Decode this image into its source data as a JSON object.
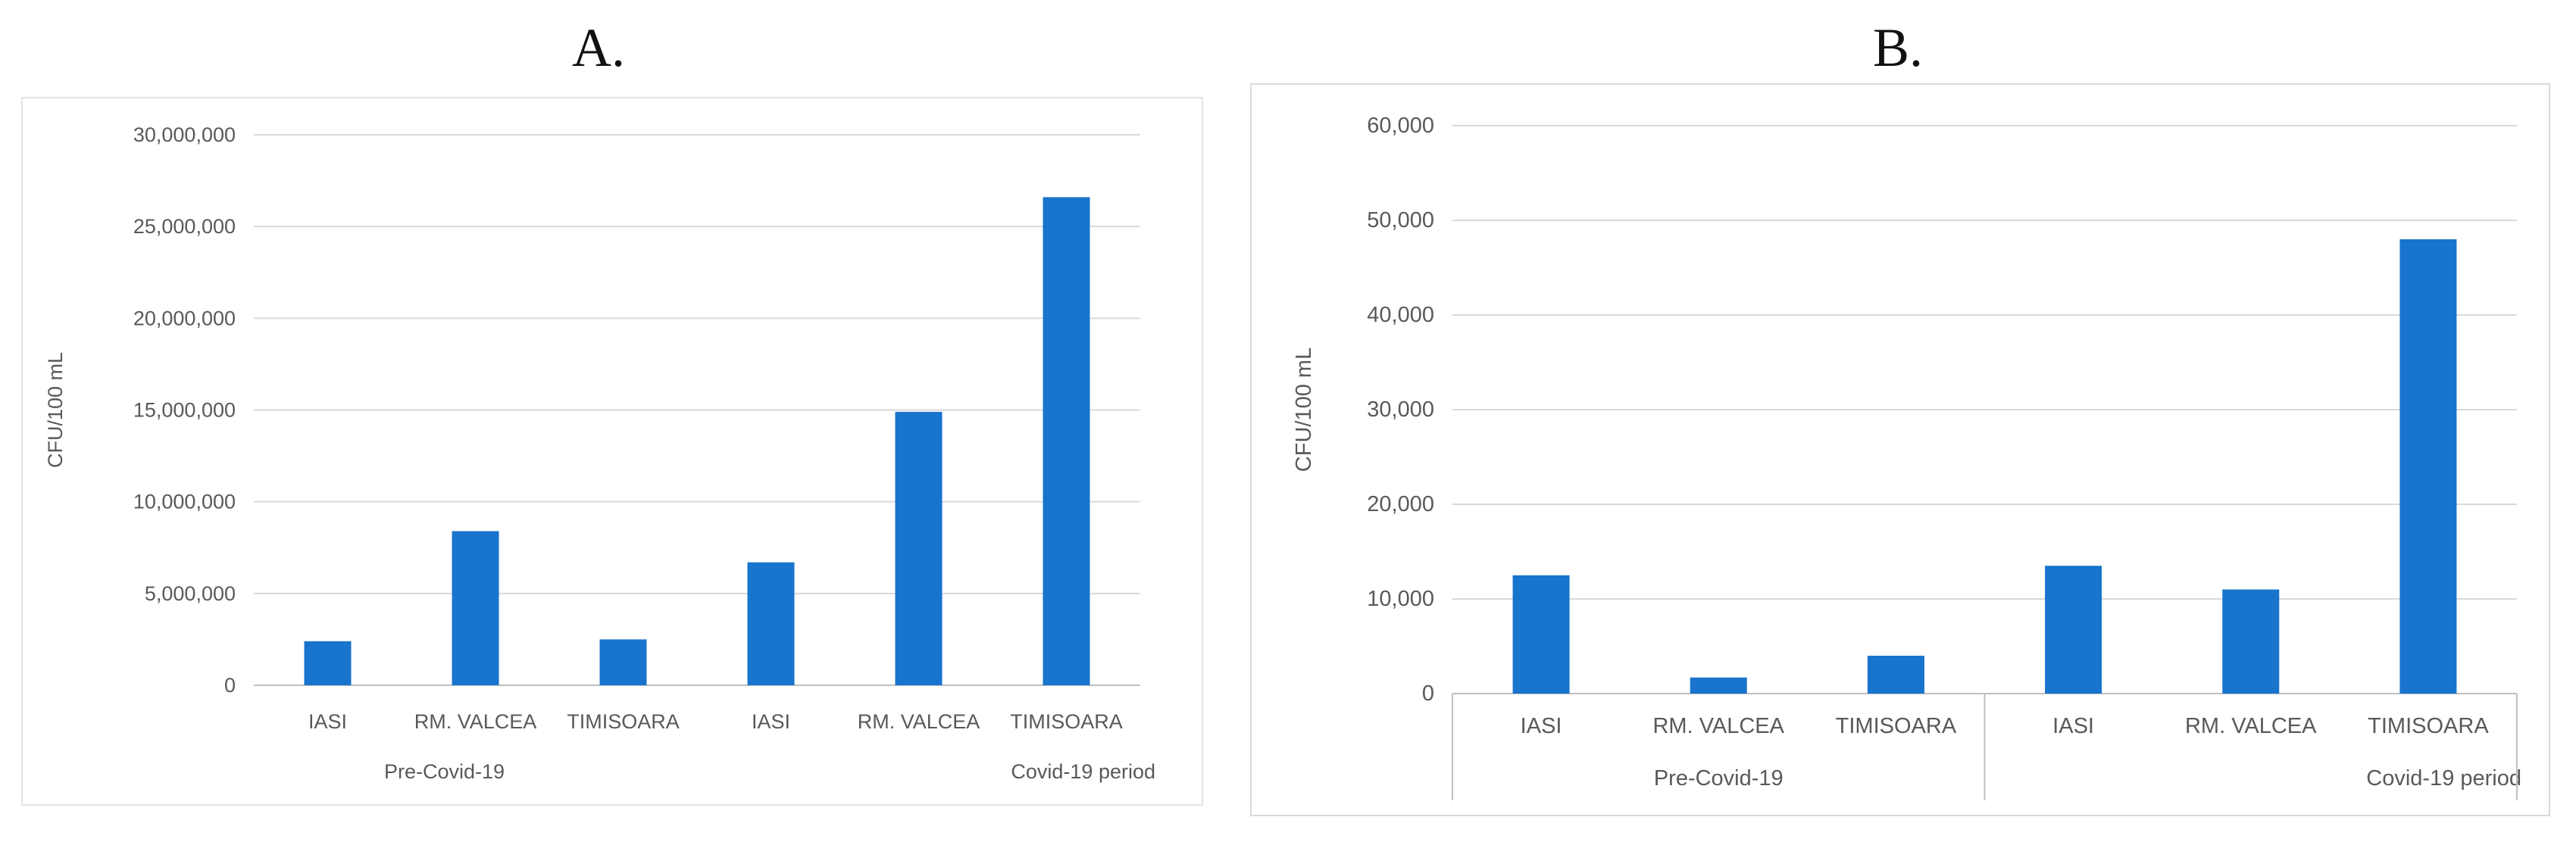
{
  "panels": {
    "a": {
      "label": "A."
    },
    "b": {
      "label": "B."
    }
  },
  "chart_data": [
    {
      "type": "bar",
      "ylabel": "CFU/100 mL",
      "xlabel": "",
      "ylim": [
        0,
        30000000
      ],
      "yticks": [
        0,
        5000000,
        10000000,
        15000000,
        20000000,
        25000000,
        30000000
      ],
      "ytick_labels": [
        "0",
        "5,000,000",
        "10,000,000",
        "15,000,000",
        "20,000,000",
        "25,000,000",
        "30,000,000"
      ],
      "categories": [
        "IASI",
        "RM. VALCEA",
        "TIMISOARA",
        "IASI",
        "RM. VALCEA",
        "TIMISOARA"
      ],
      "groups": [
        "Pre-Covid-19",
        "Covid-19 period"
      ],
      "values": [
        2400000,
        8400000,
        2500000,
        6700000,
        14900000,
        26600000
      ],
      "grid": true,
      "color": "#1874CD"
    },
    {
      "type": "bar",
      "ylabel": "CFU/100 mL",
      "xlabel": "",
      "ylim": [
        0,
        60000
      ],
      "yticks": [
        0,
        10000,
        20000,
        30000,
        40000,
        50000,
        60000
      ],
      "ytick_labels": [
        "0",
        "10,000",
        "20,000",
        "30,000",
        "40,000",
        "50,000",
        "60,000"
      ],
      "categories": [
        "IASI",
        "RM. VALCEA",
        "TIMISOARA",
        "IASI",
        "RM. VALCEA",
        "TIMISOARA"
      ],
      "groups": [
        "Pre-Covid-19",
        "Covid-19 period"
      ],
      "values": [
        12500,
        1700,
        4000,
        13500,
        11000,
        48000
      ],
      "grid": true,
      "color": "#1874CD"
    }
  ]
}
